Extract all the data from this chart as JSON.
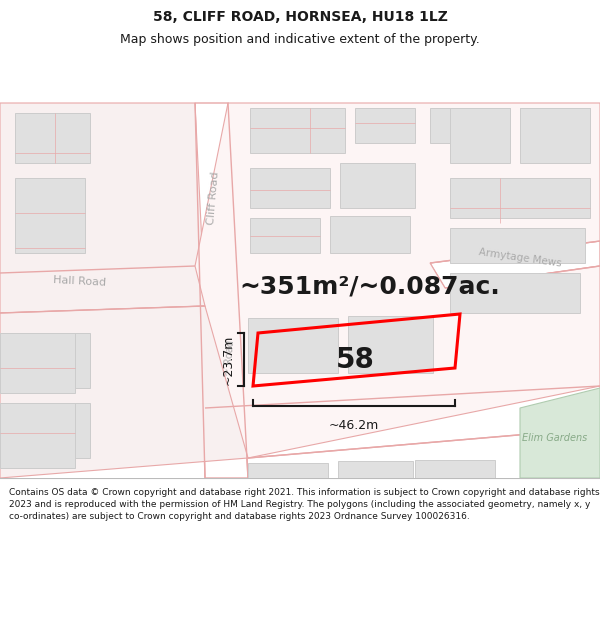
{
  "title": "58, CLIFF ROAD, HORNSEA, HU18 1LZ",
  "subtitle": "Map shows position and indicative extent of the property.",
  "area_text": "~351m²/~0.087ac.",
  "width_label": "~46.2m",
  "height_label": "~23.7m",
  "property_number": "58",
  "footer_text": "Contains OS data © Crown copyright and database right 2021. This information is subject to Crown copyright and database rights 2023 and is reproduced with the permission of HM Land Registry. The polygons (including the associated geometry, namely x, y co-ordinates) are subject to Crown copyright and database rights 2023 Ordnance Survey 100026316.",
  "bg_color": "#ffffff",
  "road_line_color": "#e8a8a8",
  "building_fill": "#e0e0e0",
  "building_edge": "#cccccc",
  "property_color": "#ff0000",
  "text_color": "#1a1a1a",
  "footer_bg": "#ffffff",
  "dim_color": "#1a1a1a",
  "road_label_color": "#aaaaaa",
  "elim_fill": "#d8e8d8",
  "title_fontsize": 10,
  "subtitle_fontsize": 9,
  "area_fontsize": 18,
  "prop_num_fontsize": 20,
  "dim_fontsize": 9,
  "road_label_fontsize": 8,
  "footer_fontsize": 6.5
}
